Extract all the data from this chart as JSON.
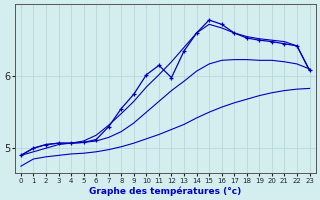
{
  "xlabel": "Graphe des températures (°c)",
  "bg_color": "#d4eef0",
  "line_color": "#0000bb",
  "grid_color": "#b0d4d8",
  "xlim": [
    -0.5,
    23.5
  ],
  "ylim": [
    4.65,
    7.0
  ],
  "yticks": [
    5,
    6
  ],
  "xticks": [
    0,
    1,
    2,
    3,
    4,
    5,
    6,
    7,
    8,
    9,
    10,
    11,
    12,
    13,
    14,
    15,
    16,
    17,
    18,
    19,
    20,
    21,
    22,
    23
  ],
  "line_lower_x": [
    0,
    1,
    2,
    3,
    4,
    5,
    6,
    7,
    8,
    9,
    10,
    11,
    12,
    13,
    14,
    15,
    16,
    17,
    18,
    19,
    20,
    21,
    22,
    23
  ],
  "line_lower_y": [
    4.75,
    4.85,
    4.88,
    4.9,
    4.92,
    4.93,
    4.95,
    4.98,
    5.02,
    5.07,
    5.13,
    5.19,
    5.26,
    5.33,
    5.42,
    5.5,
    5.57,
    5.63,
    5.68,
    5.73,
    5.77,
    5.8,
    5.82,
    5.83
  ],
  "line_mid_x": [
    0,
    1,
    2,
    3,
    4,
    5,
    6,
    7,
    8,
    9,
    10,
    11,
    12,
    13,
    14,
    15,
    16,
    17,
    18,
    19,
    20,
    21,
    22,
    23
  ],
  "line_mid_y": [
    4.9,
    5.0,
    5.05,
    5.07,
    5.07,
    5.08,
    5.1,
    5.15,
    5.23,
    5.35,
    5.5,
    5.65,
    5.8,
    5.93,
    6.07,
    6.17,
    6.22,
    6.23,
    6.23,
    6.22,
    6.22,
    6.2,
    6.17,
    6.1
  ],
  "line_upper_x": [
    0,
    2,
    3,
    4,
    5,
    6,
    7,
    8,
    9,
    10,
    11,
    12,
    13,
    14,
    15,
    16,
    17,
    18,
    19,
    20,
    21,
    22,
    23
  ],
  "line_upper_y": [
    4.9,
    5.0,
    5.05,
    5.07,
    5.1,
    5.18,
    5.32,
    5.48,
    5.65,
    5.85,
    6.02,
    6.2,
    6.4,
    6.6,
    6.72,
    6.67,
    6.6,
    6.55,
    6.52,
    6.5,
    6.48,
    6.42,
    6.08
  ],
  "line_detail_x": [
    0,
    1,
    2,
    3,
    4,
    5,
    6,
    7,
    8,
    9,
    10,
    11,
    12,
    13,
    14,
    15,
    16,
    17,
    18,
    19,
    20,
    21,
    22,
    23
  ],
  "line_detail_y": [
    4.9,
    5.0,
    5.05,
    5.07,
    5.07,
    5.08,
    5.12,
    5.3,
    5.55,
    5.75,
    6.02,
    6.15,
    5.98,
    6.35,
    6.6,
    6.78,
    6.72,
    6.6,
    6.53,
    6.5,
    6.48,
    6.45,
    6.42,
    6.08
  ]
}
